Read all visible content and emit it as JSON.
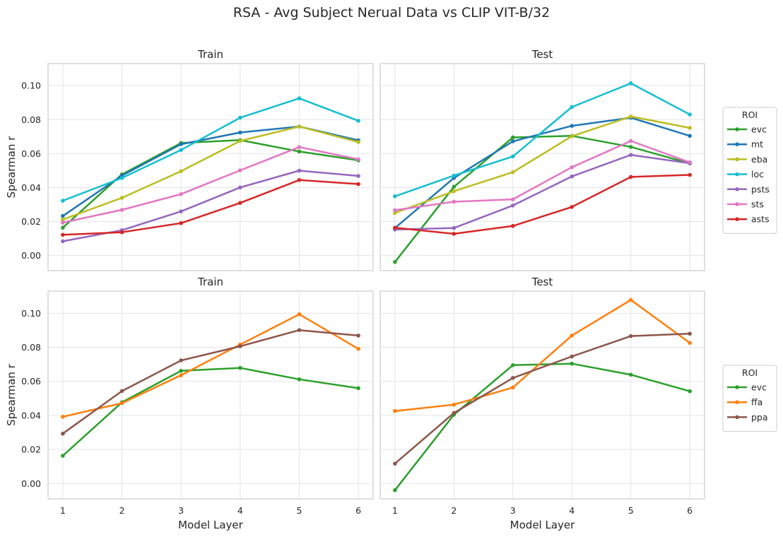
{
  "figure": {
    "title": "RSA - Avg Subject Nerual Data vs CLIP VIT-B/32"
  },
  "colors": {
    "evc": "#2ca02c",
    "mt": "#1f77b4",
    "eba": "#bcbd22",
    "loc": "#17becf",
    "psts": "#9467bd",
    "sts": "#e377c2",
    "asts": "#d62728",
    "ffa": "#ff7f0e",
    "ppa": "#8c564b"
  },
  "chart_data": [
    {
      "type": "line",
      "title": "Train",
      "xlabel": "",
      "ylabel": "Spearman r",
      "x": [
        1,
        2,
        3,
        4,
        5,
        6
      ],
      "ylim": [
        -0.009,
        0.113
      ],
      "yticks": [
        "0.00",
        "0.02",
        "0.04",
        "0.06",
        "0.08",
        "0.10"
      ],
      "xticks": [],
      "grid": true,
      "series": [
        {
          "name": "evc",
          "values": [
            0.0163,
            0.0477,
            0.0662,
            0.0679,
            0.0612,
            0.056
          ]
        },
        {
          "name": "mt",
          "values": [
            0.0232,
            0.047,
            0.0655,
            0.0724,
            0.0759,
            0.0678
          ]
        },
        {
          "name": "eba",
          "values": [
            0.0211,
            0.0339,
            0.0496,
            0.0674,
            0.0759,
            0.0668
          ]
        },
        {
          "name": "loc",
          "values": [
            0.0322,
            0.0456,
            0.0621,
            0.0811,
            0.0925,
            0.0793
          ]
        },
        {
          "name": "psts",
          "values": [
            0.0083,
            0.0148,
            0.0259,
            0.04,
            0.0499,
            0.0468
          ]
        },
        {
          "name": "sts",
          "values": [
            0.0193,
            0.0268,
            0.0361,
            0.0501,
            0.0638,
            0.0566
          ]
        },
        {
          "name": "asts",
          "values": [
            0.0121,
            0.0136,
            0.019,
            0.0309,
            0.0444,
            0.042
          ]
        }
      ]
    },
    {
      "type": "line",
      "title": "Test",
      "xlabel": "",
      "ylabel": "",
      "x": [
        1,
        2,
        3,
        4,
        5,
        6
      ],
      "ylim": [
        -0.009,
        0.113
      ],
      "yticks": [],
      "xticks": [],
      "grid": true,
      "series": [
        {
          "name": "evc",
          "values": [
            -0.0039,
            0.0404,
            0.0695,
            0.0704,
            0.0639,
            0.0542
          ]
        },
        {
          "name": "mt",
          "values": [
            0.0161,
            0.0456,
            0.0672,
            0.0763,
            0.0811,
            0.0704
          ]
        },
        {
          "name": "eba",
          "values": [
            0.025,
            0.0378,
            0.049,
            0.0702,
            0.0818,
            0.0751
          ]
        },
        {
          "name": "loc",
          "values": [
            0.0348,
            0.047,
            0.0583,
            0.0874,
            0.1014,
            0.083
          ]
        },
        {
          "name": "psts",
          "values": [
            0.0152,
            0.0161,
            0.0294,
            0.0465,
            0.0592,
            0.0543
          ]
        },
        {
          "name": "sts",
          "values": [
            0.0266,
            0.0316,
            0.033,
            0.0519,
            0.0674,
            0.0548
          ]
        },
        {
          "name": "asts",
          "values": [
            0.0163,
            0.0127,
            0.0173,
            0.0285,
            0.0462,
            0.0474
          ]
        }
      ],
      "legend": {
        "title": "ROI",
        "placement": "right"
      }
    },
    {
      "type": "line",
      "title": "Train",
      "xlabel": "Model Layer",
      "ylabel": "Spearman r",
      "x": [
        1,
        2,
        3,
        4,
        5,
        6
      ],
      "ylim": [
        -0.009,
        0.113
      ],
      "yticks": [
        "0.00",
        "0.02",
        "0.04",
        "0.06",
        "0.08",
        "0.10"
      ],
      "xticks": [
        "1",
        "2",
        "3",
        "4",
        "5",
        "6"
      ],
      "grid": true,
      "series": [
        {
          "name": "evc",
          "values": [
            0.0163,
            0.0477,
            0.0662,
            0.0679,
            0.0612,
            0.056
          ]
        },
        {
          "name": "ffa",
          "values": [
            0.0392,
            0.0472,
            0.0636,
            0.0816,
            0.0994,
            0.0791
          ]
        },
        {
          "name": "ppa",
          "values": [
            0.0293,
            0.0543,
            0.0723,
            0.0806,
            0.0901,
            0.0869
          ]
        }
      ]
    },
    {
      "type": "line",
      "title": "Test",
      "xlabel": "Model Layer",
      "ylabel": "",
      "x": [
        1,
        2,
        3,
        4,
        5,
        6
      ],
      "ylim": [
        -0.009,
        0.113
      ],
      "yticks": [],
      "xticks": [
        "1",
        "2",
        "3",
        "4",
        "5",
        "6"
      ],
      "grid": true,
      "series": [
        {
          "name": "evc",
          "values": [
            -0.0039,
            0.0404,
            0.0695,
            0.0704,
            0.0639,
            0.0542
          ]
        },
        {
          "name": "ffa",
          "values": [
            0.0426,
            0.0463,
            0.0564,
            0.0869,
            0.1078,
            0.0826
          ]
        },
        {
          "name": "ppa",
          "values": [
            0.0117,
            0.0414,
            0.062,
            0.0746,
            0.0866,
            0.088
          ]
        }
      ],
      "legend": {
        "title": "ROI",
        "placement": "right"
      }
    }
  ]
}
